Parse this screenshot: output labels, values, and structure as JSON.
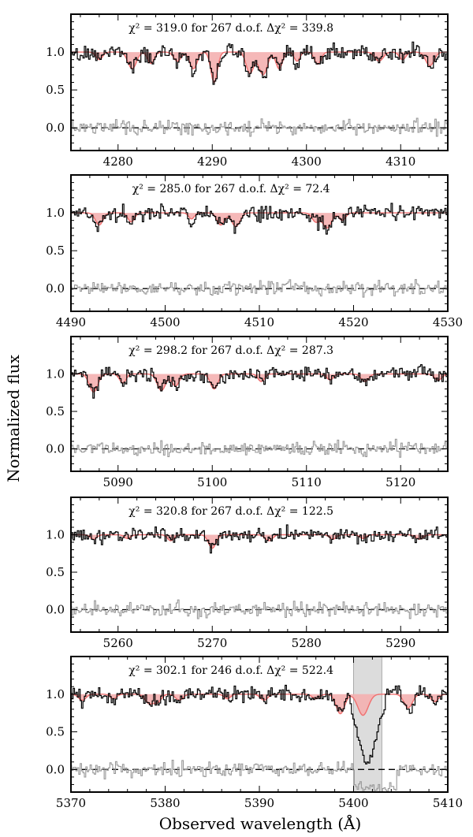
{
  "figure": {
    "ylabel": "Normalized flux",
    "xlabel": "Observed wavelength (Å)"
  },
  "chart_data": [
    {
      "type": "line",
      "title": "χ² = 319.0 for 267 d.o.f.  Δχ² = 339.8",
      "xlim": [
        4275,
        4315
      ],
      "ylim": [
        -0.3,
        1.5
      ],
      "xticks": [
        4280,
        4290,
        4300,
        4310
      ],
      "yticks": [
        0.0,
        0.5,
        1.0
      ],
      "ytick_labels": [
        "0.0",
        "0.5",
        "1.0"
      ],
      "model_absorptions": [
        [
          4278,
          0.1,
          0.35
        ],
        [
          4281.5,
          0.22,
          0.45
        ],
        [
          4283.5,
          0.15,
          0.35
        ],
        [
          4286.3,
          0.12,
          0.4
        ],
        [
          4288.0,
          0.22,
          0.4
        ],
        [
          4290.2,
          0.4,
          0.35
        ],
        [
          4294.0,
          0.28,
          0.4
        ],
        [
          4295.4,
          0.3,
          0.45
        ],
        [
          4297.1,
          0.22,
          0.35
        ],
        [
          4299.0,
          0.12,
          0.3
        ],
        [
          4301.2,
          0.16,
          0.35
        ],
        [
          4307.7,
          0.12,
          0.45
        ],
        [
          4310.2,
          0.1,
          0.35
        ],
        [
          4313.1,
          0.18,
          0.45
        ]
      ],
      "series": [
        {
          "name": "observed",
          "color": "#000000"
        },
        {
          "name": "model",
          "color": "#f07070",
          "fill": "#f4b0b0"
        },
        {
          "name": "residual",
          "color": "#999999"
        }
      ]
    },
    {
      "type": "line",
      "title": "χ² = 285.0 for 267 d.o.f.  Δχ² = 72.4",
      "xlim": [
        4490,
        4530
      ],
      "ylim": [
        -0.3,
        1.5
      ],
      "xticks": [
        4490,
        4500,
        4510,
        4520,
        4530
      ],
      "yticks": [
        0.0,
        0.5,
        1.0
      ],
      "ytick_labels": [
        "0.0",
        "0.5",
        "1.0"
      ],
      "model_absorptions": [
        [
          4493.0,
          0.16,
          0.4
        ],
        [
          4496.4,
          0.12,
          0.35
        ],
        [
          4502.8,
          0.08,
          0.3
        ],
        [
          4505.9,
          0.16,
          0.4
        ],
        [
          4507.5,
          0.18,
          0.45
        ],
        [
          4516.0,
          0.12,
          0.4
        ],
        [
          4517.2,
          0.2,
          0.45
        ],
        [
          4518.8,
          0.1,
          0.35
        ]
      ],
      "series": [
        {
          "name": "observed",
          "color": "#000000"
        },
        {
          "name": "model",
          "color": "#f07070",
          "fill": "#f4b0b0"
        },
        {
          "name": "residual",
          "color": "#999999"
        }
      ]
    },
    {
      "type": "line",
      "title": "χ² = 298.2 for 267 d.o.f.  Δχ² = 287.3",
      "xlim": [
        5085,
        5125
      ],
      "ylim": [
        -0.3,
        1.5
      ],
      "xticks": [
        5090,
        5100,
        5110,
        5120
      ],
      "yticks": [
        0.0,
        0.5,
        1.0
      ],
      "ytick_labels": [
        "0.0",
        "0.5",
        "1.0"
      ],
      "model_absorptions": [
        [
          5087.4,
          0.24,
          0.45
        ],
        [
          5090.5,
          0.12,
          0.35
        ],
        [
          5094.6,
          0.22,
          0.45
        ],
        [
          5096.1,
          0.16,
          0.4
        ],
        [
          5100.2,
          0.2,
          0.4
        ],
        [
          5105.2,
          0.1,
          0.35
        ],
        [
          5112.5,
          0.08,
          0.35
        ],
        [
          5116.2,
          0.1,
          0.4
        ],
        [
          5124.0,
          0.08,
          0.4
        ]
      ],
      "series": [
        {
          "name": "observed",
          "color": "#000000"
        },
        {
          "name": "model",
          "color": "#f07070",
          "fill": "#f4b0b0"
        },
        {
          "name": "residual",
          "color": "#999999"
        }
      ]
    },
    {
      "type": "line",
      "title": "χ² = 320.8 for 267 d.o.f.  Δχ² = 122.5",
      "xlim": [
        5255,
        5295
      ],
      "ylim": [
        -0.3,
        1.5
      ],
      "xticks": [
        5260,
        5270,
        5280,
        5290
      ],
      "yticks": [
        0.0,
        0.5,
        1.0
      ],
      "ytick_labels": [
        "0.0",
        "0.5",
        "1.0"
      ],
      "model_absorptions": [
        [
          5257.4,
          0.06,
          0.35
        ],
        [
          5261.0,
          0.05,
          0.35
        ],
        [
          5265.6,
          0.08,
          0.35
        ],
        [
          5270.0,
          0.18,
          0.4
        ],
        [
          5276.0,
          0.08,
          0.4
        ],
        [
          5282.8,
          0.06,
          0.35
        ],
        [
          5286.0,
          0.05,
          0.35
        ],
        [
          5292.0,
          0.06,
          0.4
        ]
      ],
      "series": [
        {
          "name": "observed",
          "color": "#000000"
        },
        {
          "name": "model",
          "color": "#f07070",
          "fill": "#f4b0b0"
        },
        {
          "name": "residual",
          "color": "#999999"
        }
      ]
    },
    {
      "type": "line",
      "title": "χ² = 302.1 for 246 d.o.f.  Δχ² = 522.4",
      "xlim": [
        5370,
        5410
      ],
      "ylim": [
        -0.3,
        1.5
      ],
      "xticks": [
        5370,
        5380,
        5390,
        5400,
        5410
      ],
      "yticks": [
        0.0,
        0.5,
        1.0
      ],
      "ytick_labels": [
        "0.0",
        "0.5",
        "1.0"
      ],
      "model_absorptions": [
        [
          5371.2,
          0.08,
          0.4
        ],
        [
          5374.5,
          0.06,
          0.35
        ],
        [
          5378.3,
          0.12,
          0.45
        ],
        [
          5379.2,
          0.1,
          0.4
        ],
        [
          5381.5,
          0.08,
          0.4
        ],
        [
          5386.6,
          0.06,
          0.35
        ],
        [
          5390.5,
          0.08,
          0.4
        ],
        [
          5396.0,
          0.06,
          0.4
        ],
        [
          5398.6,
          0.26,
          0.45
        ],
        [
          5401.0,
          0.28,
          0.55
        ],
        [
          5405.8,
          0.18,
          0.45
        ],
        [
          5408.6,
          0.1,
          0.4
        ]
      ],
      "masked_region": [
        5400.0,
        5403.0
      ],
      "series": [
        {
          "name": "observed",
          "color": "#000000"
        },
        {
          "name": "model",
          "color": "#f07070",
          "fill": "#f4b0b0"
        },
        {
          "name": "residual",
          "color": "#999999"
        }
      ]
    }
  ]
}
